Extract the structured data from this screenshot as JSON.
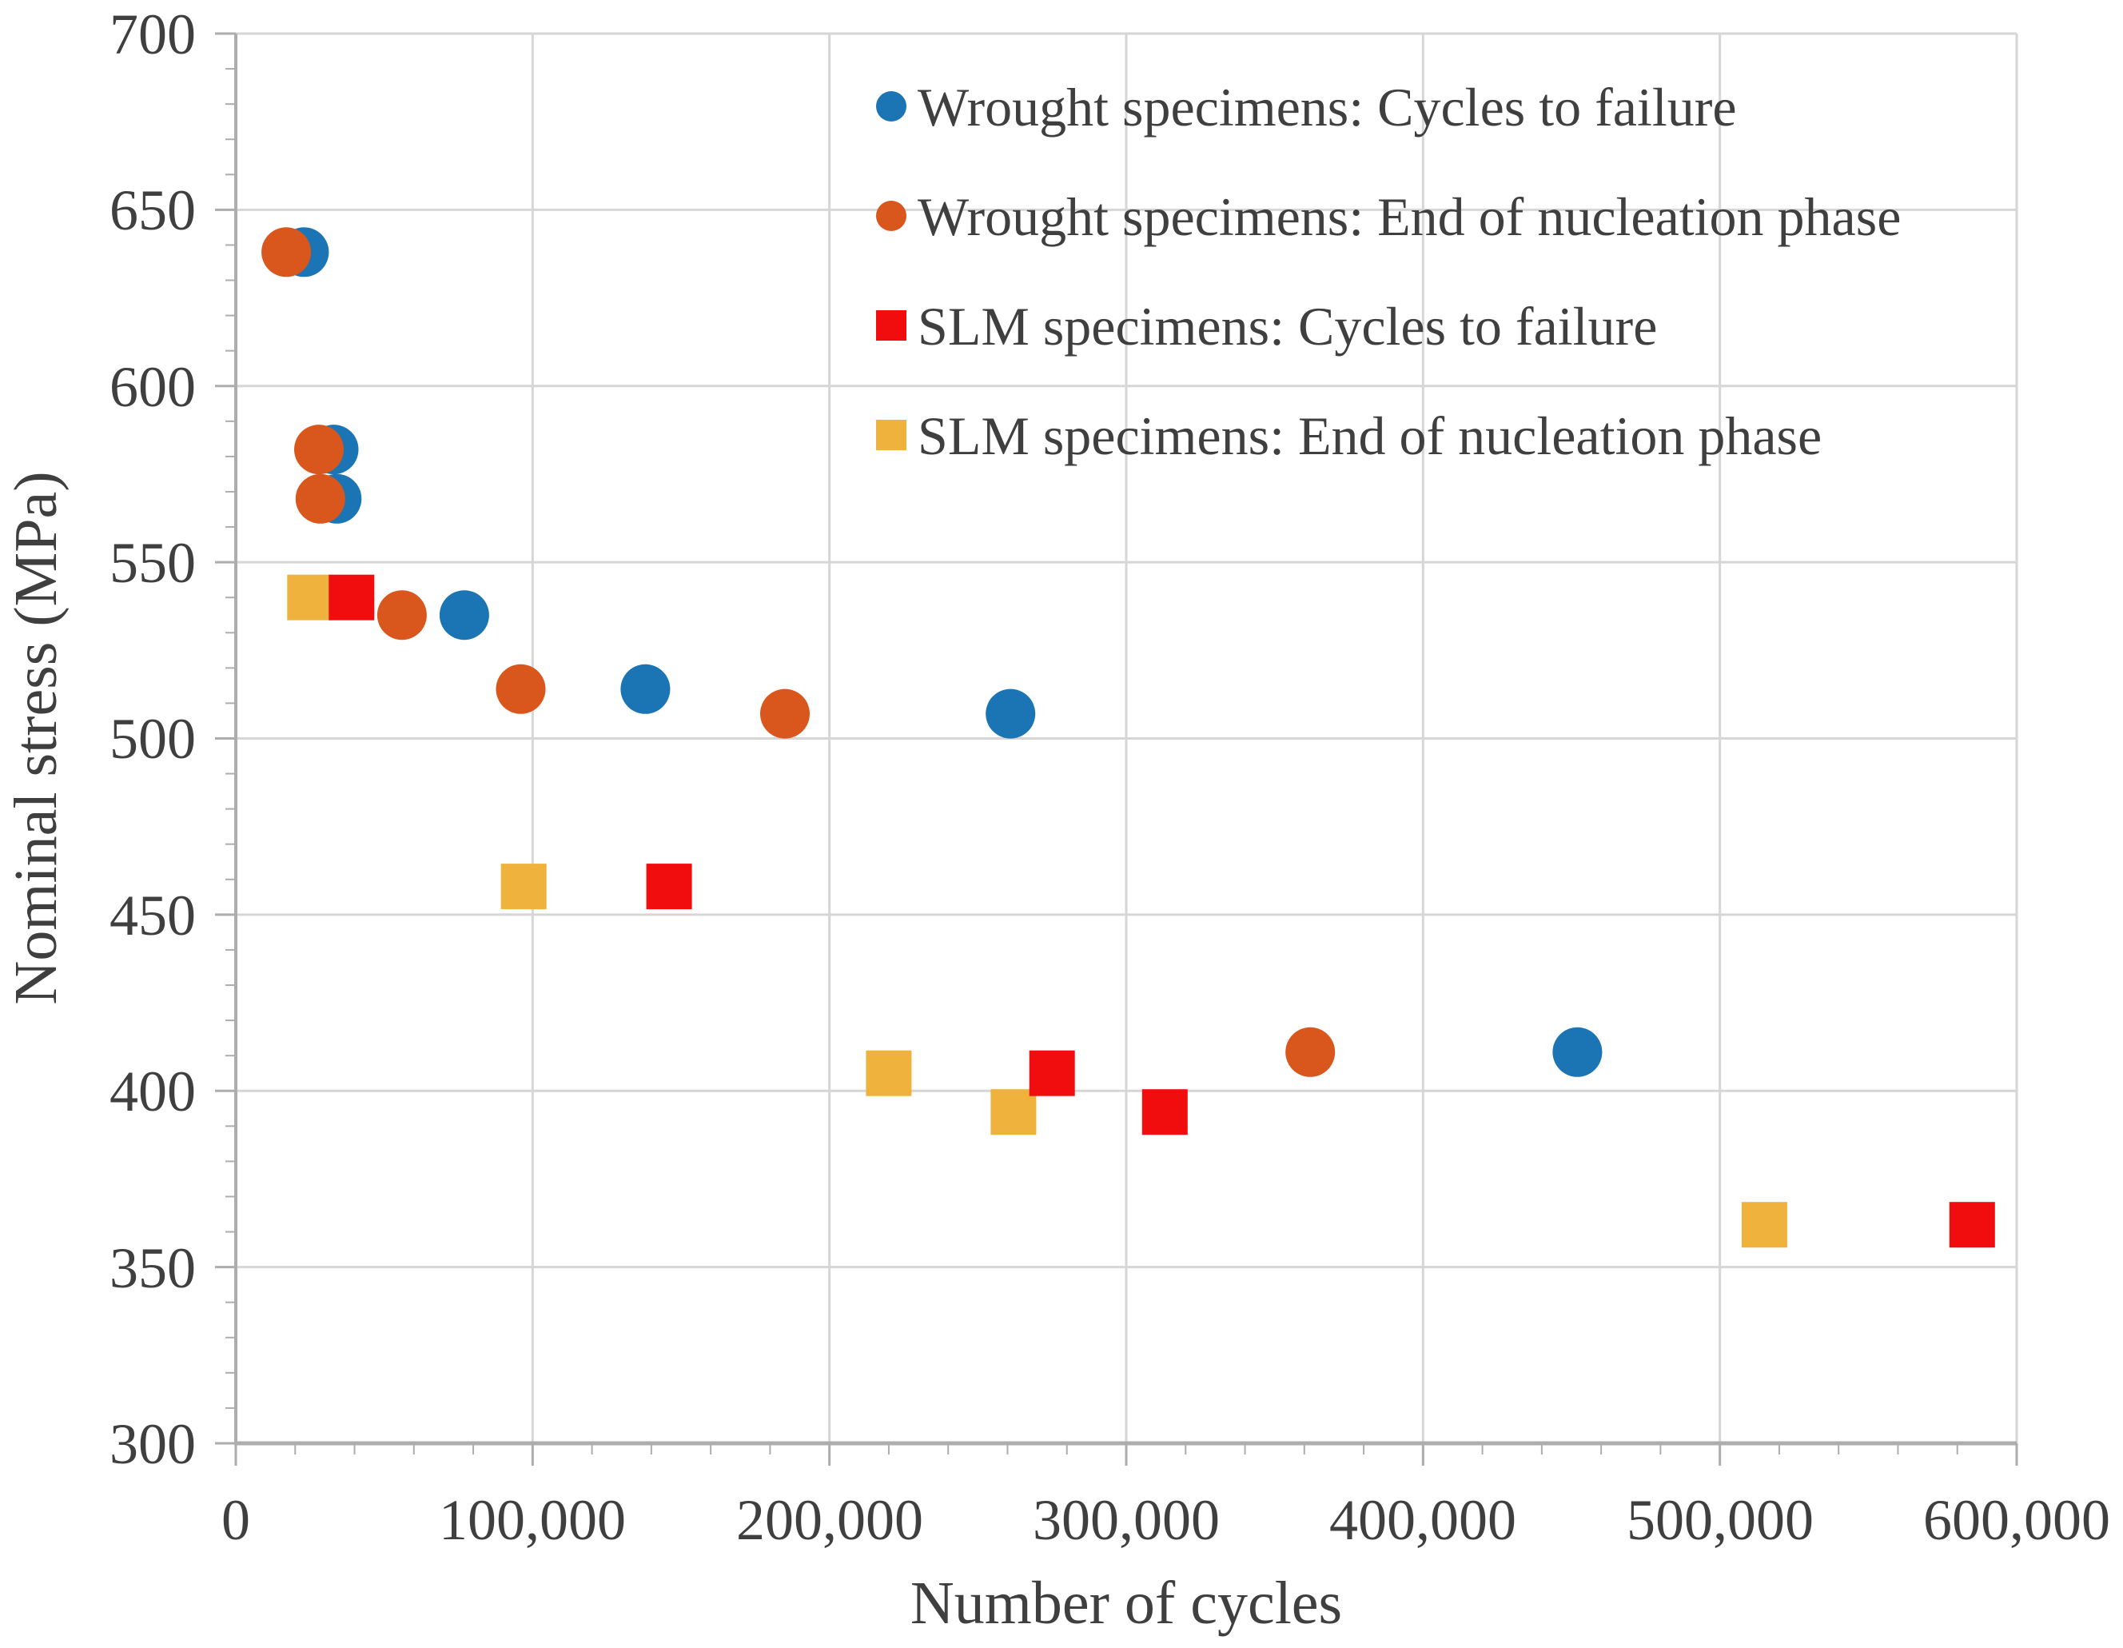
{
  "chart_data": {
    "type": "scatter",
    "title": "",
    "xlabel": "Number of cycles",
    "ylabel": "Nominal stress (MPa)",
    "xlim": [
      0,
      600000
    ],
    "ylim": [
      300,
      700
    ],
    "grid": true,
    "legend_position": "inside top-right",
    "x_major_ticks": [
      0,
      100000,
      200000,
      300000,
      400000,
      500000,
      600000
    ],
    "x_tick_labels": [
      "0",
      "100,000",
      "200,000",
      "300,000",
      "400,000",
      "500,000",
      "600,000"
    ],
    "x_minor_step": 20000,
    "y_major_ticks": [
      300,
      350,
      400,
      450,
      500,
      550,
      600,
      650,
      700
    ],
    "y_tick_labels": [
      "300",
      "350",
      "400",
      "450",
      "500",
      "550",
      "600",
      "650",
      "700"
    ],
    "y_minor_step": 10,
    "colors": {
      "gridline": "#D6D6D6",
      "axis": "#ADADAD",
      "text": "#3F3F3F",
      "wrought_failure": "#1B75B4",
      "wrought_nucleation": "#D9571C",
      "slm_failure": "#F10D0D",
      "slm_nucleation": "#EFB23C"
    },
    "series": [
      {
        "id": "wrought-failure",
        "name": "Wrought specimens: Cycles to failure",
        "marker": "circle",
        "color": "#1B75B4",
        "points": [
          [
            23000,
            638
          ],
          [
            33000,
            582
          ],
          [
            34000,
            568
          ],
          [
            77000,
            535
          ],
          [
            138000,
            514
          ],
          [
            261000,
            507
          ],
          [
            452000,
            411
          ]
        ]
      },
      {
        "id": "wrought-nucleation",
        "name": "Wrought specimens: End of nucleation phase",
        "marker": "circle",
        "color": "#D9571C",
        "points": [
          [
            17000,
            638
          ],
          [
            28000,
            582
          ],
          [
            28500,
            568
          ],
          [
            56000,
            535
          ],
          [
            96000,
            514
          ],
          [
            185000,
            507
          ],
          [
            362000,
            411
          ]
        ]
      },
      {
        "id": "slm-failure",
        "name": "SLM specimens: Cycles to failure",
        "marker": "square",
        "color": "#F10D0D",
        "points": [
          [
            39000,
            540
          ],
          [
            146000,
            458
          ],
          [
            275000,
            405
          ],
          [
            313000,
            394
          ],
          [
            585000,
            362
          ]
        ]
      },
      {
        "id": "slm-nucleation",
        "name": "SLM specimens: End of nucleation phase",
        "marker": "square",
        "color": "#EFB23C",
        "points": [
          [
            25000,
            540
          ],
          [
            97000,
            458
          ],
          [
            220000,
            405
          ],
          [
            262000,
            394
          ],
          [
            515000,
            362
          ]
        ]
      }
    ]
  }
}
